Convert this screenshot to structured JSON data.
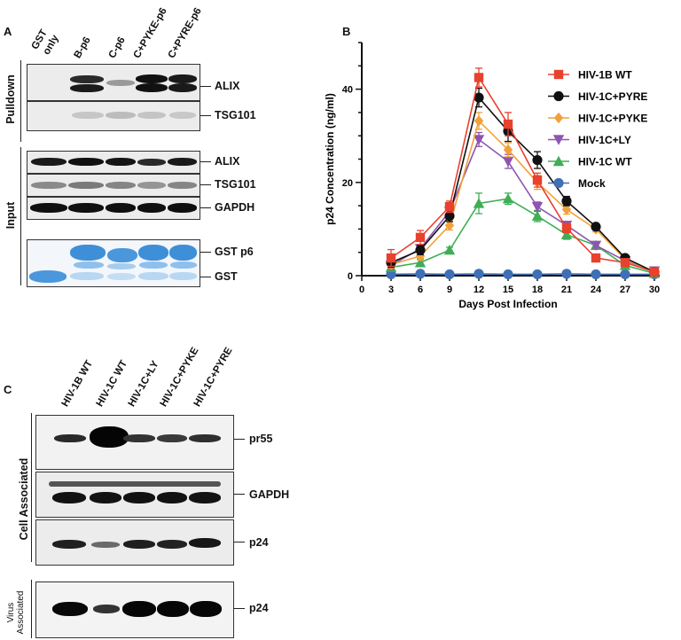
{
  "panel_a": {
    "letter": "A",
    "lanes": [
      "GST only",
      "B-p6",
      "C-p6",
      "C+PYKE-p6",
      "C+PYRE-p6"
    ],
    "lane_lines": [
      [
        "GST",
        "only"
      ],
      [
        "B-p6"
      ],
      [
        "C-p6"
      ],
      [
        "C+PYKE-p6"
      ],
      [
        "C+PYRE-p6"
      ]
    ],
    "group_pulldown": "Pulldown",
    "group_input": "Input",
    "blot_labels": [
      "ALIX",
      "TSG101",
      "ALIX",
      "TSG101",
      "GAPDH",
      "GST p6",
      "GST"
    ]
  },
  "panel_b": {
    "letter": "B"
  },
  "panel_c": {
    "letter": "C",
    "lanes": [
      "HIV-1B WT",
      "HIV-1C WT",
      "HIV-1C+LY",
      "HIV-1C+PYKE",
      "HIV-1C+PYRE"
    ],
    "group_cell": "Cell Associated",
    "group_virus": [
      "Virus",
      "Associated"
    ],
    "blot_labels": [
      "pr55",
      "GAPDH",
      "p24",
      "p24"
    ]
  },
  "chart_data": {
    "type": "line",
    "xlabel": "Days Post Infection",
    "ylabel": "p24 Concentration (ng/ml)",
    "xlim": [
      0,
      30
    ],
    "ylim": [
      0,
      50
    ],
    "xticks": [
      0,
      3,
      6,
      9,
      12,
      15,
      18,
      21,
      24,
      27,
      30
    ],
    "yticks": [
      0,
      20,
      40
    ],
    "legend_position": "top-right",
    "grid": false,
    "x": [
      3,
      6,
      9,
      12,
      15,
      18,
      21,
      24,
      27,
      30
    ],
    "series": [
      {
        "name": "HIV-1B WT",
        "color": "#e8412e",
        "marker": "square",
        "values": [
          3.8,
          8.2,
          14.8,
          42.5,
          32.5,
          20.5,
          10.2,
          3.8,
          2.8,
          0.8
        ],
        "errors": [
          1.8,
          1.5,
          1.2,
          2.0,
          2.5,
          1.5,
          1.0,
          0.5,
          0.5,
          0.3
        ]
      },
      {
        "name": "HIV-1C+PYRE",
        "color": "#111111",
        "marker": "circle",
        "values": [
          2.8,
          5.5,
          12.8,
          38.2,
          31.0,
          24.8,
          16.0,
          10.5,
          3.8,
          0.8
        ],
        "errors": [
          1.0,
          1.0,
          1.2,
          2.0,
          2.2,
          1.8,
          1.0,
          0.6,
          0.4,
          0.3
        ]
      },
      {
        "name": "HIV-1C+PYKE",
        "color": "#f2a13a",
        "marker": "diamond",
        "values": [
          2.4,
          4.2,
          10.8,
          33.2,
          27.0,
          20.0,
          14.2,
          10.0,
          3.5,
          0.8
        ],
        "errors": [
          0.8,
          0.8,
          1.0,
          1.8,
          1.5,
          1.5,
          1.0,
          0.6,
          0.4,
          0.3
        ]
      },
      {
        "name": "HIV-1C+LY",
        "color": "#8e55b0",
        "marker": "triangle-down",
        "values": [
          2.2,
          5.8,
          13.8,
          29.2,
          24.5,
          14.8,
          10.8,
          6.5,
          3.2,
          1.0
        ],
        "errors": [
          0.8,
          0.8,
          1.0,
          1.5,
          1.5,
          1.0,
          0.8,
          0.6,
          0.4,
          0.3
        ]
      },
      {
        "name": "HIV-1C WT",
        "color": "#3fae55",
        "marker": "triangle-up",
        "values": [
          1.8,
          2.8,
          5.5,
          15.5,
          16.5,
          12.8,
          8.8,
          6.5,
          2.2,
          0.5
        ],
        "errors": [
          0.8,
          0.8,
          0.6,
          2.2,
          1.2,
          1.2,
          1.0,
          0.6,
          0.4,
          0.3
        ]
      },
      {
        "name": "Mock",
        "color": "#3f6fb5",
        "marker": "circle",
        "values": [
          0.3,
          0.4,
          0.3,
          0.4,
          0.3,
          0.3,
          0.4,
          0.3,
          0.3,
          0.3
        ],
        "errors": [
          0,
          0,
          0,
          0,
          0,
          0,
          0,
          0,
          0,
          0
        ]
      }
    ]
  }
}
